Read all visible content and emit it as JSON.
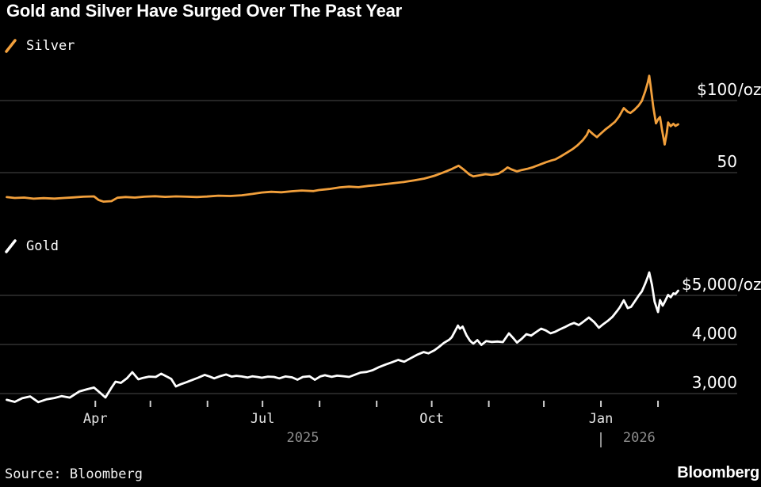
{
  "title": "Gold and Silver Have Surged Over The Past Year",
  "source": "Source: Bloomberg",
  "logo": "Bloomberg",
  "colors": {
    "background": "#000000",
    "silver_line": "#F2A03C",
    "gold_line": "#FFFFFF",
    "gridline": "#4A4A4A",
    "tick": "#CFCFCF",
    "axis_text": "#FFFFFF",
    "month_label": "#E6E6E6",
    "year_label": "#8D8D8D"
  },
  "chart_data": {
    "type": "line",
    "title": "Gold and Silver Have Surged Over The Past Year",
    "grid": "horizontal-only",
    "legend_position": "top-left-of-each-panel",
    "x_axis": {
      "xlim": [
        2025.105,
        2026.203
      ],
      "month_ticks": [
        {
          "x": 2025.247,
          "label": "Apr"
        },
        {
          "x": 2025.329,
          "label": ""
        },
        {
          "x": 2025.414,
          "label": ""
        },
        {
          "x": 2025.496,
          "label": "Jul"
        },
        {
          "x": 2025.581,
          "label": ""
        },
        {
          "x": 2025.666,
          "label": ""
        },
        {
          "x": 2025.748,
          "label": "Oct"
        },
        {
          "x": 2025.833,
          "label": ""
        },
        {
          "x": 2025.915,
          "label": ""
        },
        {
          "x": 2026.0,
          "label": "Jan"
        },
        {
          "x": 2026.085,
          "label": ""
        }
      ],
      "year_labels": [
        {
          "x": 2025.556,
          "label": "2025"
        },
        {
          "x": 2026.057,
          "label": "2026"
        }
      ],
      "year_dividers": [
        2026.0
      ]
    },
    "panels": [
      {
        "name": "silver",
        "legend": "Silver",
        "color": "#F2A03C",
        "unit": "USD/oz",
        "ylim": [
          25,
          122
        ],
        "yticks": [
          {
            "value": 100,
            "label": "$100",
            "suffix": "/oz"
          },
          {
            "value": 50,
            "label": "50",
            "suffix": ""
          }
        ],
        "series": {
          "name": "Silver",
          "points": [
            [
              2025.115,
              33.0
            ],
            [
              2025.127,
              32.4
            ],
            [
              2025.141,
              32.7
            ],
            [
              2025.155,
              31.9
            ],
            [
              2025.17,
              32.3
            ],
            [
              2025.186,
              32.0
            ],
            [
              2025.2,
              32.4
            ],
            [
              2025.214,
              32.8
            ],
            [
              2025.229,
              33.3
            ],
            [
              2025.245,
              33.5
            ],
            [
              2025.252,
              31.0
            ],
            [
              2025.259,
              29.9
            ],
            [
              2025.271,
              30.2
            ],
            [
              2025.28,
              32.6
            ],
            [
              2025.292,
              33.1
            ],
            [
              2025.306,
              32.7
            ],
            [
              2025.32,
              33.3
            ],
            [
              2025.336,
              33.6
            ],
            [
              2025.351,
              33.2
            ],
            [
              2025.367,
              33.5
            ],
            [
              2025.383,
              33.3
            ],
            [
              2025.398,
              33.1
            ],
            [
              2025.413,
              33.4
            ],
            [
              2025.43,
              34.0
            ],
            [
              2025.448,
              33.8
            ],
            [
              2025.465,
              34.3
            ],
            [
              2025.481,
              35.2
            ],
            [
              2025.495,
              36.2
            ],
            [
              2025.509,
              36.7
            ],
            [
              2025.524,
              36.4
            ],
            [
              2025.54,
              37.1
            ],
            [
              2025.554,
              37.6
            ],
            [
              2025.572,
              37.2
            ],
            [
              2025.58,
              37.9
            ],
            [
              2025.595,
              38.6
            ],
            [
              2025.611,
              39.8
            ],
            [
              2025.625,
              40.3
            ],
            [
              2025.639,
              39.9
            ],
            [
              2025.654,
              40.8
            ],
            [
              2025.664,
              41.2
            ],
            [
              2025.678,
              42.0
            ],
            [
              2025.693,
              42.8
            ],
            [
              2025.707,
              43.5
            ],
            [
              2025.722,
              44.6
            ],
            [
              2025.737,
              45.9
            ],
            [
              2025.752,
              47.8
            ],
            [
              2025.766,
              50.2
            ],
            [
              2025.778,
              52.5
            ],
            [
              2025.788,
              54.8
            ],
            [
              2025.796,
              52.0
            ],
            [
              2025.804,
              48.8
            ],
            [
              2025.81,
              47.4
            ],
            [
              2025.82,
              48.2
            ],
            [
              2025.828,
              48.9
            ],
            [
              2025.837,
              48.4
            ],
            [
              2025.847,
              49.2
            ],
            [
              2025.855,
              51.5
            ],
            [
              2025.861,
              53.6
            ],
            [
              2025.867,
              52.2
            ],
            [
              2025.875,
              50.9
            ],
            [
              2025.882,
              51.8
            ],
            [
              2025.89,
              52.6
            ],
            [
              2025.899,
              53.8
            ],
            [
              2025.908,
              55.4
            ],
            [
              2025.918,
              57.2
            ],
            [
              2025.926,
              58.4
            ],
            [
              2025.932,
              59.2
            ],
            [
              2025.941,
              61.5
            ],
            [
              2025.949,
              63.8
            ],
            [
              2025.958,
              66.4
            ],
            [
              2025.965,
              68.9
            ],
            [
              2025.973,
              72.5
            ],
            [
              2025.979,
              76.2
            ],
            [
              2025.982,
              79.4
            ],
            [
              2025.988,
              76.8
            ],
            [
              2025.994,
              74.6
            ],
            [
              2026.0,
              77.2
            ],
            [
              2026.007,
              80.1
            ],
            [
              2026.014,
              82.6
            ],
            [
              2026.021,
              85.3
            ],
            [
              2026.027,
              88.9
            ],
            [
              2026.034,
              94.8
            ],
            [
              2026.04,
              92.2
            ],
            [
              2026.044,
              91.4
            ],
            [
              2026.05,
              93.6
            ],
            [
              2026.056,
              96.5
            ],
            [
              2026.061,
              99.8
            ],
            [
              2026.066,
              106.5
            ],
            [
              2026.07,
              112.8
            ],
            [
              2026.072,
              117.2
            ],
            [
              2026.074,
              110.4
            ],
            [
              2026.078,
              95.6
            ],
            [
              2026.082,
              84.2
            ],
            [
              2026.085,
              86.9
            ],
            [
              2026.088,
              88.6
            ],
            [
              2026.091,
              79.8
            ],
            [
              2026.095,
              69.5
            ],
            [
              2026.098,
              77.4
            ],
            [
              2026.1,
              84.8
            ],
            [
              2026.104,
              82.2
            ],
            [
              2026.108,
              83.9
            ],
            [
              2026.111,
              82.4
            ],
            [
              2026.115,
              83.5
            ]
          ]
        }
      },
      {
        "name": "gold",
        "legend": "Gold",
        "color": "#FFFFFF",
        "unit": "USD/oz",
        "ylim": [
          2750,
          5600
        ],
        "yticks": [
          {
            "value": 5000,
            "label": "$5,000",
            "suffix": "/oz"
          },
          {
            "value": 4000,
            "label": "4,000",
            "suffix": ""
          },
          {
            "value": 3000,
            "label": "3,000",
            "suffix": ""
          }
        ],
        "series": {
          "name": "Gold",
          "points": [
            [
              2025.115,
              2872
            ],
            [
              2025.127,
              2830
            ],
            [
              2025.138,
              2905
            ],
            [
              2025.15,
              2942
            ],
            [
              2025.162,
              2825
            ],
            [
              2025.174,
              2880
            ],
            [
              2025.186,
              2910
            ],
            [
              2025.197,
              2948
            ],
            [
              2025.209,
              2918
            ],
            [
              2025.223,
              3042
            ],
            [
              2025.235,
              3088
            ],
            [
              2025.245,
              3122
            ],
            [
              2025.254,
              3018
            ],
            [
              2025.262,
              2920
            ],
            [
              2025.271,
              3120
            ],
            [
              2025.277,
              3242
            ],
            [
              2025.285,
              3218
            ],
            [
              2025.294,
              3310
            ],
            [
              2025.302,
              3435
            ],
            [
              2025.311,
              3290
            ],
            [
              2025.318,
              3320
            ],
            [
              2025.327,
              3345
            ],
            [
              2025.337,
              3338
            ],
            [
              2025.345,
              3405
            ],
            [
              2025.353,
              3348
            ],
            [
              2025.36,
              3298
            ],
            [
              2025.367,
              3145
            ],
            [
              2025.374,
              3188
            ],
            [
              2025.383,
              3232
            ],
            [
              2025.391,
              3275
            ],
            [
              2025.4,
              3322
            ],
            [
              2025.41,
              3380
            ],
            [
              2025.417,
              3348
            ],
            [
              2025.424,
              3310
            ],
            [
              2025.433,
              3355
            ],
            [
              2025.442,
              3388
            ],
            [
              2025.45,
              3345
            ],
            [
              2025.457,
              3362
            ],
            [
              2025.465,
              3348
            ],
            [
              2025.474,
              3328
            ],
            [
              2025.481,
              3352
            ],
            [
              2025.488,
              3338
            ],
            [
              2025.495,
              3322
            ],
            [
              2025.504,
              3345
            ],
            [
              2025.513,
              3338
            ],
            [
              2025.521,
              3310
            ],
            [
              2025.53,
              3348
            ],
            [
              2025.54,
              3330
            ],
            [
              2025.548,
              3282
            ],
            [
              2025.556,
              3338
            ],
            [
              2025.566,
              3352
            ],
            [
              2025.574,
              3280
            ],
            [
              2025.582,
              3348
            ],
            [
              2025.589,
              3372
            ],
            [
              2025.599,
              3340
            ],
            [
              2025.607,
              3365
            ],
            [
              2025.615,
              3355
            ],
            [
              2025.625,
              3338
            ],
            [
              2025.634,
              3385
            ],
            [
              2025.642,
              3428
            ],
            [
              2025.651,
              3440
            ],
            [
              2025.66,
              3476
            ],
            [
              2025.67,
              3542
            ],
            [
              2025.679,
              3590
            ],
            [
              2025.689,
              3638
            ],
            [
              2025.698,
              3685
            ],
            [
              2025.707,
              3648
            ],
            [
              2025.717,
              3722
            ],
            [
              2025.726,
              3788
            ],
            [
              2025.736,
              3845
            ],
            [
              2025.743,
              3820
            ],
            [
              2025.752,
              3880
            ],
            [
              2025.759,
              3952
            ],
            [
              2025.766,
              4030
            ],
            [
              2025.774,
              4095
            ],
            [
              2025.778,
              4150
            ],
            [
              2025.783,
              4280
            ],
            [
              2025.787,
              4386
            ],
            [
              2025.79,
              4320
            ],
            [
              2025.794,
              4365
            ],
            [
              2025.8,
              4180
            ],
            [
              2025.805,
              4075
            ],
            [
              2025.81,
              4016
            ],
            [
              2025.816,
              4088
            ],
            [
              2025.822,
              3990
            ],
            [
              2025.829,
              4068
            ],
            [
              2025.837,
              4052
            ],
            [
              2025.846,
              4060
            ],
            [
              2025.854,
              4048
            ],
            [
              2025.863,
              4225
            ],
            [
              2025.87,
              4120
            ],
            [
              2025.875,
              4038
            ],
            [
              2025.882,
              4115
            ],
            [
              2025.889,
              4210
            ],
            [
              2025.896,
              4180
            ],
            [
              2025.903,
              4248
            ],
            [
              2025.911,
              4322
            ],
            [
              2025.918,
              4285
            ],
            [
              2025.925,
              4228
            ],
            [
              2025.932,
              4260
            ],
            [
              2025.939,
              4308
            ],
            [
              2025.946,
              4352
            ],
            [
              2025.953,
              4402
            ],
            [
              2025.96,
              4438
            ],
            [
              2025.967,
              4395
            ],
            [
              2025.974,
              4465
            ],
            [
              2025.982,
              4548
            ],
            [
              2025.99,
              4455
            ],
            [
              2025.997,
              4340
            ],
            [
              2026.003,
              4408
            ],
            [
              2026.01,
              4478
            ],
            [
              2026.017,
              4562
            ],
            [
              2026.024,
              4680
            ],
            [
              2026.028,
              4755
            ],
            [
              2026.034,
              4900
            ],
            [
              2026.04,
              4740
            ],
            [
              2026.045,
              4768
            ],
            [
              2026.051,
              4890
            ],
            [
              2026.057,
              5010
            ],
            [
              2026.061,
              5080
            ],
            [
              2026.066,
              5240
            ],
            [
              2026.07,
              5380
            ],
            [
              2026.072,
              5468
            ],
            [
              2026.076,
              5220
            ],
            [
              2026.08,
              4870
            ],
            [
              2026.085,
              4662
            ],
            [
              2026.088,
              4905
            ],
            [
              2026.092,
              4790
            ],
            [
              2026.095,
              4868
            ],
            [
              2026.1,
              5010
            ],
            [
              2026.104,
              4962
            ],
            [
              2026.108,
              5042
            ],
            [
              2026.111,
              5028
            ],
            [
              2026.115,
              5095
            ]
          ]
        }
      }
    ]
  }
}
